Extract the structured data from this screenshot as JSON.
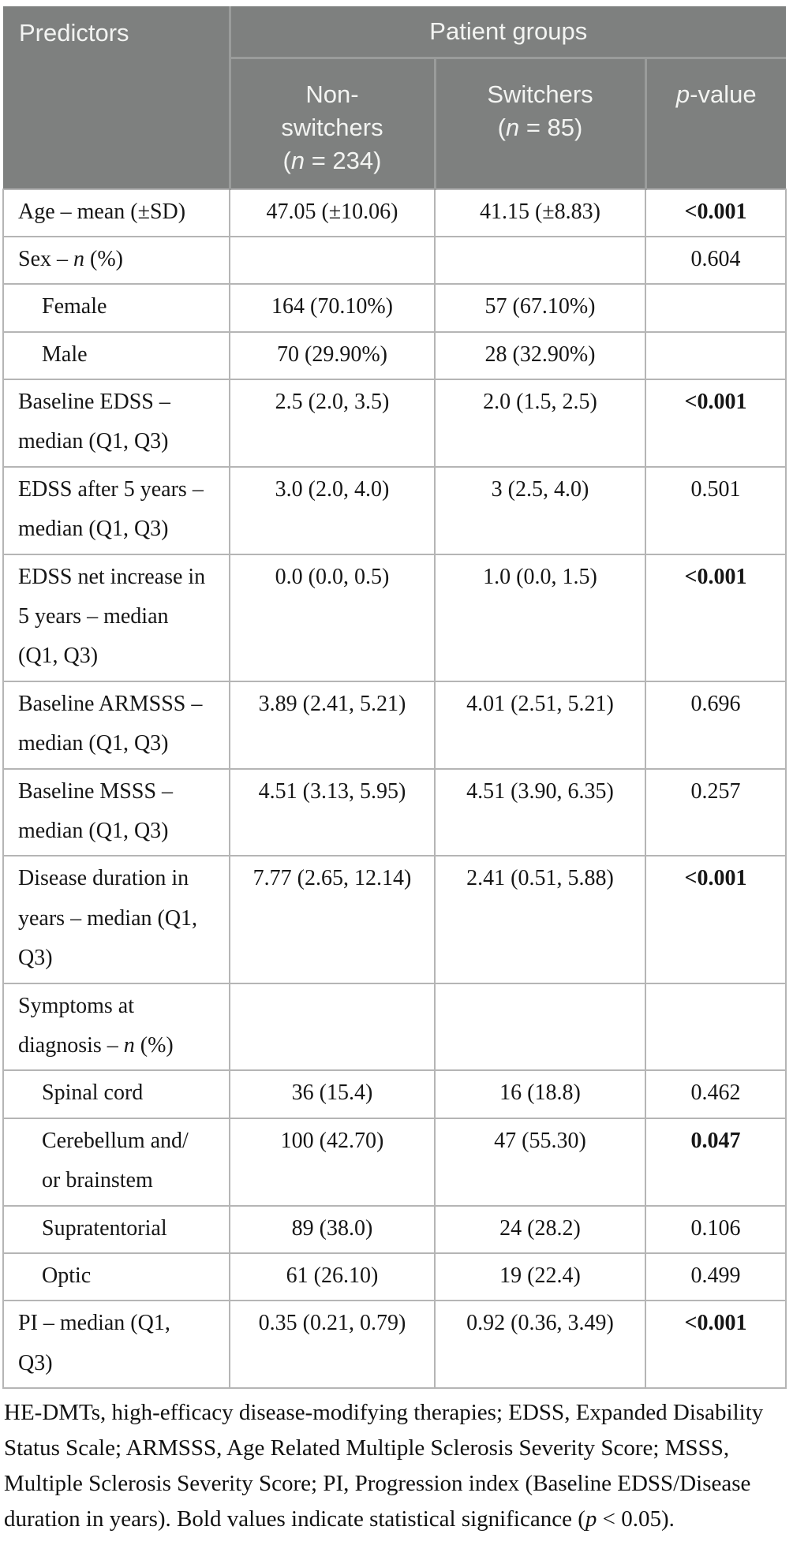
{
  "colors": {
    "header_bg": "#7e807f",
    "header_text": "#f3f4f2",
    "header_divider": "#9a9c9b",
    "body_border": "#b5b5b5",
    "body_text": "#161616"
  },
  "table": {
    "header": {
      "predictors": "Predictors",
      "patient_groups": "Patient groups",
      "columns": [
        {
          "label": "Non-\nswitchers\n(*n* = 234)"
        },
        {
          "label": "Switchers\n(*n* = 85)"
        },
        {
          "label": "*p*-value"
        }
      ]
    },
    "rows": [
      {
        "label": "Age – mean (±SD)",
        "indent": false,
        "non_switchers": "47.05 (±10.06)",
        "switchers": "41.15 (±8.83)",
        "p_value": "<0.001",
        "significant": true
      },
      {
        "label": "Sex – *n* (%)",
        "indent": false,
        "non_switchers": "",
        "switchers": "",
        "p_value": "0.604",
        "significant": false
      },
      {
        "label": "Female",
        "indent": true,
        "non_switchers": "164 (70.10%)",
        "switchers": "57 (67.10%)",
        "p_value": "",
        "significant": false
      },
      {
        "label": "Male",
        "indent": true,
        "non_switchers": "70 (29.90%)",
        "switchers": "28 (32.90%)",
        "p_value": "",
        "significant": false
      },
      {
        "label": "Baseline EDSS –\nmedian (Q1, Q3)",
        "indent": false,
        "non_switchers": "2.5 (2.0, 3.5)",
        "switchers": "2.0 (1.5, 2.5)",
        "p_value": "<0.001",
        "significant": true
      },
      {
        "label": "EDSS after 5 years –\nmedian (Q1, Q3)",
        "indent": false,
        "non_switchers": "3.0 (2.0, 4.0)",
        "switchers": "3 (2.5, 4.0)",
        "p_value": "0.501",
        "significant": false
      },
      {
        "label": "EDSS net increase in\n5 years – median\n(Q1, Q3)",
        "indent": false,
        "non_switchers": "0.0 (0.0, 0.5)",
        "switchers": "1.0 (0.0, 1.5)",
        "p_value": "<0.001",
        "significant": true
      },
      {
        "label": "Baseline ARMSSS –\nmedian (Q1, Q3)",
        "indent": false,
        "non_switchers": "3.89 (2.41, 5.21)",
        "switchers": "4.01 (2.51, 5.21)",
        "p_value": "0.696",
        "significant": false
      },
      {
        "label": "Baseline MSSS –\nmedian (Q1, Q3)",
        "indent": false,
        "non_switchers": "4.51 (3.13, 5.95)",
        "switchers": "4.51 (3.90, 6.35)",
        "p_value": "0.257",
        "significant": false
      },
      {
        "label": "Disease duration in\nyears – median (Q1,\nQ3)",
        "indent": false,
        "non_switchers": "7.77 (2.65, 12.14)",
        "switchers": "2.41 (0.51, 5.88)",
        "p_value": "<0.001",
        "significant": true
      },
      {
        "label": "Symptoms at\ndiagnosis – *n* (%)",
        "indent": false,
        "non_switchers": "",
        "switchers": "",
        "p_value": "",
        "significant": false
      },
      {
        "label": "Spinal cord",
        "indent": true,
        "non_switchers": "36 (15.4)",
        "switchers": "16 (18.8)",
        "p_value": "0.462",
        "significant": false
      },
      {
        "label": "Cerebellum and/\nor brainstem",
        "indent": true,
        "non_switchers": "100 (42.70)",
        "switchers": "47 (55.30)",
        "p_value": "0.047",
        "significant": true
      },
      {
        "label": "Supratentorial",
        "indent": true,
        "non_switchers": "89 (38.0)",
        "switchers": "24 (28.2)",
        "p_value": "0.106",
        "significant": false
      },
      {
        "label": "Optic",
        "indent": true,
        "non_switchers": "61 (26.10)",
        "switchers": "19 (22.4)",
        "p_value": "0.499",
        "significant": false
      },
      {
        "label": "PI – median (Q1,\nQ3)",
        "indent": false,
        "non_switchers": "0.35 (0.21, 0.79)",
        "switchers": "0.92 (0.36, 3.49)",
        "p_value": "<0.001",
        "significant": true
      }
    ],
    "footnote": "HE-DMTs, high-efficacy disease-modifying therapies; EDSS, Expanded Disability Status Scale; ARMSSS, Age Related Multiple Sclerosis Severity Score; MSSS, Multiple Sclerosis Severity Score; PI, Progression index (Baseline EDSS/Disease duration in years). Bold values indicate statistical significance (*p* < 0.05)."
  }
}
